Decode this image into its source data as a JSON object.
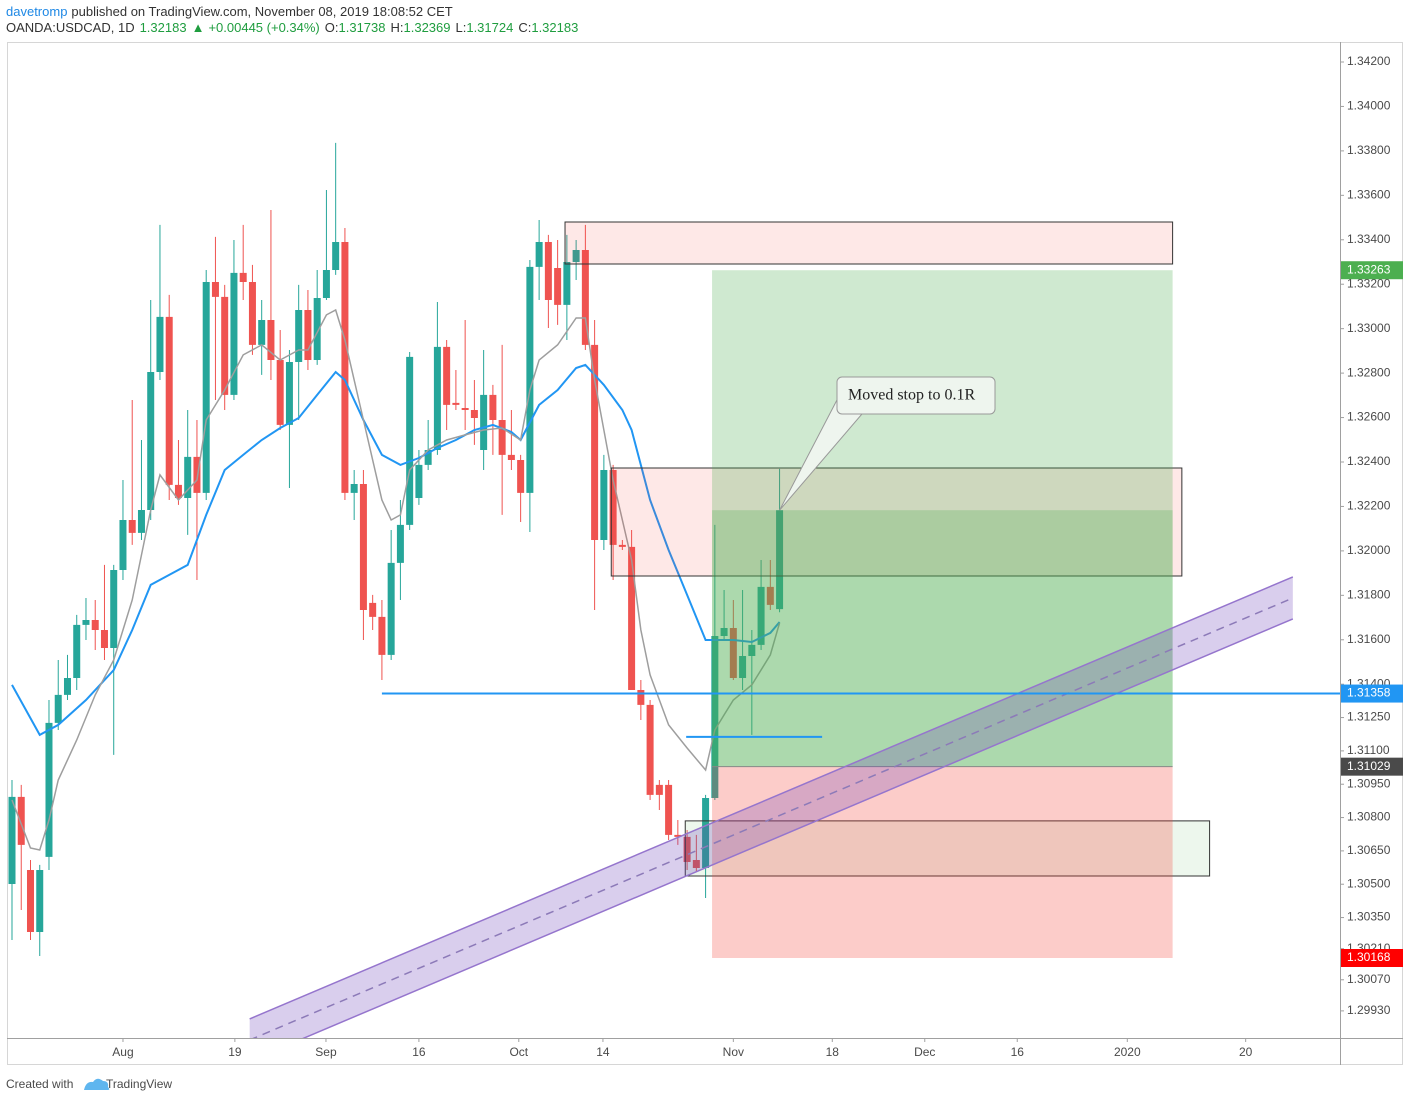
{
  "header": {
    "author": "davetromp",
    "published": "published on TradingView.com, November 08, 2019 18:08:52 CET",
    "symbol": "OANDA:USDCAD, 1D",
    "arrow": "▲",
    "change": "+0.00445 (+0.34%)",
    "open_label": "O:",
    "high_label": "H:",
    "low_label": "L:",
    "close_label": "C:"
  },
  "footer": {
    "text": "Created with",
    "brand": "TradingView"
  },
  "chart_data": {
    "type": "candlestick",
    "up_color": "#26a69a",
    "down_color": "#ef5350",
    "open": [
      1.30501,
      1.30893,
      1.30564,
      1.30285,
      1.30623,
      1.31226,
      1.31352,
      1.31428,
      1.31667,
      1.31689,
      1.31644,
      1.31563,
      1.31914,
      1.32139,
      1.32081,
      1.32184,
      1.32805,
      1.33053,
      1.32297,
      1.32238,
      1.32423,
      1.32261,
      1.3321,
      1.33143,
      1.32702,
      1.33251,
      1.3321,
      1.32927,
      1.33039,
      1.32859,
      1.32567,
      1.3285,
      1.33084,
      1.32859,
      1.33138,
      1.33264,
      1.3339,
      1.32261,
      1.32301,
      1.31766,
      1.31703,
      1.31532,
      1.31946,
      1.32117,
      1.32238,
      1.32387,
      1.32454,
      1.32918,
      1.32666,
      1.32643,
      1.32634,
      1.32454,
      1.32702,
      1.32589,
      1.32432,
      1.32409,
      1.32261,
      1.33278,
      1.3339,
      1.33273,
      1.33107,
      1.333,
      1.33354,
      1.32927,
      1.32049,
      1.32364,
      1.32027,
      1.32018,
      1.31374,
      1.31307,
      1.30947,
      1.30947,
      1.30722,
      1.30713,
      1.30609,
      1.30573,
      1.30888,
      1.31617,
      1.31653,
      1.31428,
      1.31527,
      1.31577,
      1.31838,
      1.31738
    ],
    "high": [
      1.30969,
      1.30947,
      1.30609,
      1.30587,
      1.31329,
      1.31509,
      1.31532,
      1.31712,
      1.31788,
      1.31779,
      1.31937,
      1.31937,
      1.32319,
      1.32679,
      1.32499,
      1.33129,
      1.33467,
      1.33152,
      1.32499,
      1.32634,
      1.32589,
      1.33264,
      1.33413,
      1.33197,
      1.33399,
      1.33467,
      1.33287,
      1.33129,
      1.33534,
      1.32994,
      1.32904,
      1.33197,
      1.33174,
      1.33264,
      1.33624,
      1.33836,
      1.33453,
      1.32364,
      1.32364,
      1.31802,
      1.31779,
      1.32094,
      1.32229,
      1.32895,
      1.32454,
      1.32589,
      1.3312,
      1.32949,
      1.32814,
      1.33039,
      1.32769,
      1.32904,
      1.32747,
      1.32927,
      1.32634,
      1.32432,
      1.33309,
      1.33489,
      1.33422,
      1.33399,
      1.33422,
      1.33399,
      1.33467,
      1.33039,
      1.32432,
      1.32387,
      1.32049,
      1.32094,
      1.31419,
      1.31329,
      1.30969,
      1.30969,
      1.30789,
      1.30744,
      1.30722,
      1.30902,
      1.32117,
      1.31824,
      1.31779,
      1.31824,
      1.31644,
      1.31959,
      1.31959,
      1.32369
    ],
    "low": [
      1.30249,
      1.30384,
      1.30249,
      1.30177,
      1.30564,
      1.31194,
      1.31329,
      1.31374,
      1.31599,
      1.31554,
      1.31509,
      1.31082,
      1.31869,
      1.32027,
      1.32049,
      1.32139,
      1.32769,
      1.32229,
      1.32207,
      1.32072,
      1.31869,
      1.32229,
      1.32679,
      1.32634,
      1.32679,
      1.33129,
      1.32882,
      1.32792,
      1.32769,
      1.32544,
      1.32283,
      1.32589,
      1.32814,
      1.32837,
      1.33129,
      1.33242,
      1.32229,
      1.32139,
      1.31599,
      1.31644,
      1.31419,
      1.31509,
      1.31779,
      1.32094,
      1.32207,
      1.32364,
      1.32432,
      1.32544,
      1.32634,
      1.32544,
      1.32477,
      1.32364,
      1.32432,
      1.32162,
      1.32364,
      1.3213,
      1.32085,
      1.33129,
      1.33003,
      1.33017,
      1.32949,
      1.33219,
      1.32904,
      1.31734,
      1.32004,
      1.31869,
      1.32004,
      1.31374,
      1.31239,
      1.30879,
      1.30834,
      1.30699,
      1.30677,
      1.30564,
      1.30555,
      1.30438,
      1.30879,
      1.31599,
      1.31419,
      1.31374,
      1.31172,
      1.31554,
      1.31734,
      1.31724
    ],
    "close": [
      1.30893,
      1.30677,
      1.30285,
      1.30564,
      1.31226,
      1.31352,
      1.31428,
      1.31667,
      1.31689,
      1.31644,
      1.31563,
      1.31914,
      1.32139,
      1.32081,
      1.32184,
      1.32805,
      1.33053,
      1.32297,
      1.32238,
      1.32423,
      1.32261,
      1.3321,
      1.33143,
      1.32702,
      1.33251,
      1.3321,
      1.32927,
      1.33039,
      1.32859,
      1.32567,
      1.3285,
      1.33084,
      1.32859,
      1.33138,
      1.33264,
      1.3339,
      1.32261,
      1.32301,
      1.31734,
      1.31703,
      1.31532,
      1.31946,
      1.32117,
      1.32873,
      1.32387,
      1.32454,
      1.32918,
      1.32657,
      1.32657,
      1.32634,
      1.32598,
      1.32702,
      1.32589,
      1.32432,
      1.32409,
      1.32261,
      1.33278,
      1.3339,
      1.33129,
      1.33107,
      1.333,
      1.33354,
      1.32927,
      1.32049,
      1.32364,
      1.32027,
      1.32018,
      1.31374,
      1.31307,
      1.30902,
      1.30902,
      1.30722,
      1.30713,
      1.306,
      1.30573,
      1.30888,
      1.31617,
      1.31653,
      1.31428,
      1.31527,
      1.31577,
      1.31838,
      1.31757,
      1.32183
    ],
    "moving_averages": [
      {
        "color": "#2196f3",
        "width": 2,
        "x": [
          0,
          3,
          5,
          8,
          11,
          13,
          15,
          17,
          19,
          21,
          23,
          25,
          27,
          29,
          31,
          33,
          35,
          36,
          38,
          40,
          42,
          44,
          46,
          48,
          50,
          52,
          54,
          55,
          57,
          59,
          61,
          62,
          64,
          66,
          67,
          69,
          71,
          73,
          75,
          76,
          78,
          80,
          82,
          83
        ],
        "values": [
          1.31397,
          1.31172,
          1.31217,
          1.31329,
          1.31464,
          1.31644,
          1.31847,
          1.31892,
          1.31937,
          1.32162,
          1.32364,
          1.32432,
          1.32499,
          1.32553,
          1.32598,
          1.32702,
          1.32805,
          1.32769,
          1.32589,
          1.32432,
          1.32387,
          1.32418,
          1.32463,
          1.32499,
          1.32544,
          1.32567,
          1.32535,
          1.32499,
          1.32657,
          1.32724,
          1.32823,
          1.32837,
          1.32747,
          1.32634,
          1.32544,
          1.32229,
          1.32004,
          1.31802,
          1.31599,
          1.31599,
          1.31599,
          1.3159,
          1.31631,
          1.3168
        ]
      },
      {
        "color": "#9e9e9e",
        "width": 1.5,
        "x": [
          0,
          2,
          3,
          4,
          5,
          7,
          9,
          11,
          13,
          15,
          16,
          18,
          20,
          21,
          23,
          25,
          27,
          29,
          31,
          32,
          34,
          35,
          36,
          38,
          40,
          41,
          42,
          43,
          45,
          47,
          49,
          51,
          53,
          55,
          56,
          57,
          59,
          61,
          62,
          63,
          64,
          65,
          67,
          68,
          69,
          71,
          73,
          75,
          76,
          77,
          78,
          80,
          82,
          83
        ],
        "values": [
          1.30879,
          1.30663,
          1.30654,
          1.30789,
          1.30969,
          1.31149,
          1.31352,
          1.31509,
          1.31779,
          1.32184,
          1.32342,
          1.32229,
          1.32319,
          1.32589,
          1.32724,
          1.32882,
          1.32927,
          1.32859,
          1.32904,
          1.32904,
          1.33062,
          1.33084,
          1.32949,
          1.32589,
          1.32229,
          1.32139,
          1.32162,
          1.32364,
          1.32454,
          1.32499,
          1.32522,
          1.32544,
          1.32553,
          1.32499,
          1.32724,
          1.32859,
          1.32927,
          1.33048,
          1.33048,
          1.32769,
          1.32544,
          1.32319,
          1.31959,
          1.31644,
          1.31442,
          1.31217,
          1.31113,
          1.31014,
          1.31194,
          1.31262,
          1.31329,
          1.31397,
          1.31532,
          1.31676
        ]
      }
    ],
    "xlim": [
      -0.54,
      143.6
    ],
    "xticks": [
      {
        "value": 12,
        "label": "Aug"
      },
      {
        "value": 24.1,
        "label": "19"
      },
      {
        "value": 33.95,
        "label": "Sep"
      },
      {
        "value": 44,
        "label": "16"
      },
      {
        "value": 54.8,
        "label": "Oct"
      },
      {
        "value": 63.9,
        "label": "14"
      },
      {
        "value": 78,
        "label": "Nov"
      },
      {
        "value": 88.7,
        "label": "18"
      },
      {
        "value": 98.7,
        "label": "Dec"
      },
      {
        "value": 108.7,
        "label": "16"
      },
      {
        "value": 120.6,
        "label": "2020"
      },
      {
        "value": 133.4,
        "label": "20"
      }
    ],
    "ylim": [
      1.29808,
      1.3429
    ],
    "yticks": [
      {
        "value": 1.342,
        "label": "1.34200"
      },
      {
        "value": 1.34,
        "label": "1.34000"
      },
      {
        "value": 1.338,
        "label": "1.33800"
      },
      {
        "value": 1.336,
        "label": "1.33600"
      },
      {
        "value": 1.334,
        "label": "1.33400"
      },
      {
        "value": 1.332,
        "label": "1.33200"
      },
      {
        "value": 1.33,
        "label": "1.33000"
      },
      {
        "value": 1.328,
        "label": "1.32800"
      },
      {
        "value": 1.326,
        "label": "1.32600"
      },
      {
        "value": 1.324,
        "label": "1.32400"
      },
      {
        "value": 1.322,
        "label": "1.32200"
      },
      {
        "value": 1.32,
        "label": "1.32000"
      },
      {
        "value": 1.318,
        "label": "1.31800"
      },
      {
        "value": 1.316,
        "label": "1.31600"
      },
      {
        "value": 1.314,
        "label": "1.31400"
      },
      {
        "value": 1.3125,
        "label": "1.31250"
      },
      {
        "value": 1.311,
        "label": "1.31100"
      },
      {
        "value": 1.3095,
        "label": "1.30950"
      },
      {
        "value": 1.308,
        "label": "1.30800"
      },
      {
        "value": 1.3065,
        "label": "1.30650"
      },
      {
        "value": 1.305,
        "label": "1.30500"
      },
      {
        "value": 1.3035,
        "label": "1.30350"
      },
      {
        "value": 1.3021,
        "label": "1.30210"
      },
      {
        "value": 1.3007,
        "label": "1.30070"
      },
      {
        "value": 1.2993,
        "label": "1.29930"
      }
    ],
    "zones": [
      {
        "x": [
          59.8,
          125.5
        ],
        "y": [
          1.33291,
          1.3348
        ],
        "fill": "rgba(244,67,54,0.12)",
        "stroke": "#333"
      },
      {
        "x": [
          64.8,
          126.5
        ],
        "y": [
          1.31887,
          1.32373
        ],
        "fill": "rgba(244,67,54,0.12)",
        "stroke": "#333"
      },
      {
        "x": [
          72.8,
          129.5
        ],
        "y": [
          1.30537,
          1.30785
        ],
        "fill": "rgba(76,175,80,0.1)",
        "stroke": "#333"
      }
    ],
    "position": {
      "x": [
        75.7,
        125.5
      ],
      "target": 1.33263,
      "entry": 1.31029,
      "stop": 1.30168,
      "target_color": "#4caf50",
      "entry_color": "#4a4a4a",
      "stop_color": "#f00",
      "profit_fill": "rgba(76,175,80,0.27)",
      "loss_fill": "rgba(244,67,54,0.27)"
    },
    "hline": {
      "price": 1.31358,
      "from": 40,
      "color": "#2196f3"
    },
    "segment": {
      "x": [
        72.9,
        87.6
      ],
      "price": 1.31163,
      "color": "#2196f3"
    },
    "channel": {
      "x": [
        25.7,
        138.5
      ],
      "center": [
        1.29799,
        1.31788
      ],
      "upper": [
        1.29894,
        1.31883
      ],
      "lower": [
        1.29704,
        1.31694
      ],
      "fill": "rgba(103,58,183,0.25)",
      "stroke": "#9575cd",
      "center_color": "#8c7ab8"
    },
    "annotation": {
      "text": "Moved stop to 0.1R"
    }
  }
}
